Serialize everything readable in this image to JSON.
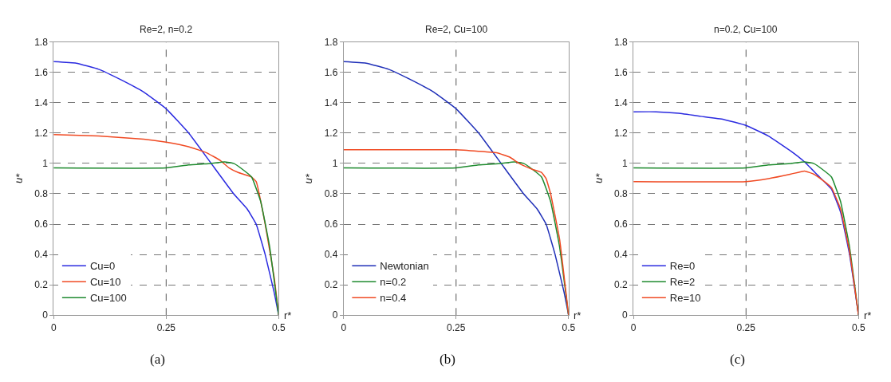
{
  "chart_data": [
    {
      "type": "line",
      "title": "Re=2, n=0.2",
      "xlabel": "r*",
      "ylabel": "u*",
      "xlim": [
        0,
        0.5
      ],
      "xticks": [
        0,
        0.25,
        0.5
      ],
      "ylim": [
        0,
        1.8
      ],
      "yticks": [
        0,
        0.2,
        0.4,
        0.6,
        0.8,
        1,
        1.2,
        1.4,
        1.6,
        1.8
      ],
      "grid": "y",
      "ref_lines": [
        {
          "axis": "x",
          "value": 0.25,
          "line_style": "dashed",
          "color": "#555555"
        }
      ],
      "legend": "bottom left",
      "marker": "none",
      "line_style": "solid",
      "annotations": [
        "(a)"
      ],
      "series": [
        {
          "name": "Cu=0",
          "color": "#2a2ae0",
          "x": [
            0,
            0.05,
            0.1,
            0.15,
            0.2,
            0.25,
            0.3,
            0.35,
            0.4,
            0.43,
            0.45,
            0.47,
            0.49,
            0.5
          ],
          "values": [
            1.67,
            1.66,
            1.62,
            1.55,
            1.47,
            1.36,
            1.2,
            1.0,
            0.8,
            0.7,
            0.6,
            0.4,
            0.15,
            0
          ]
        },
        {
          "name": "Cu=10",
          "color": "#f04a23",
          "x": [
            0,
            0.1,
            0.2,
            0.25,
            0.3,
            0.34,
            0.37,
            0.39,
            0.41,
            0.44,
            0.45,
            0.47,
            0.49,
            0.5
          ],
          "values": [
            1.19,
            1.18,
            1.16,
            1.14,
            1.11,
            1.07,
            1.02,
            0.97,
            0.94,
            0.91,
            0.88,
            0.6,
            0.25,
            0
          ]
        },
        {
          "name": "Cu=100",
          "color": "#1e8a2e",
          "x": [
            0,
            0.25,
            0.3,
            0.35,
            0.38,
            0.4,
            0.42,
            0.44,
            0.46,
            0.48,
            0.5
          ],
          "values": [
            0.97,
            0.97,
            0.99,
            1.0,
            1.01,
            1.0,
            0.96,
            0.91,
            0.75,
            0.45,
            0
          ]
        }
      ]
    },
    {
      "type": "line",
      "title": "Re=2, Cu=100",
      "xlabel": "r*",
      "ylabel": "u*",
      "xlim": [
        0,
        0.5
      ],
      "xticks": [
        0,
        0.25,
        0.5
      ],
      "ylim": [
        0,
        1.8
      ],
      "yticks": [
        0,
        0.2,
        0.4,
        0.6,
        0.8,
        1,
        1.2,
        1.4,
        1.6,
        1.8
      ],
      "grid": "y",
      "ref_lines": [
        {
          "axis": "x",
          "value": 0.25,
          "line_style": "dashed",
          "color": "#555555"
        }
      ],
      "legend": "bottom left",
      "marker": "none",
      "line_style": "solid",
      "annotations": [
        "(b)"
      ],
      "series": [
        {
          "name": "Newtonian",
          "color": "#1f2fb8",
          "x": [
            0,
            0.05,
            0.1,
            0.15,
            0.2,
            0.25,
            0.3,
            0.35,
            0.4,
            0.43,
            0.45,
            0.47,
            0.49,
            0.5
          ],
          "values": [
            1.67,
            1.66,
            1.62,
            1.55,
            1.47,
            1.36,
            1.2,
            1.0,
            0.8,
            0.7,
            0.6,
            0.4,
            0.15,
            0
          ]
        },
        {
          "name": "n=0.2",
          "color": "#1e8a2e",
          "x": [
            0,
            0.25,
            0.3,
            0.35,
            0.38,
            0.4,
            0.42,
            0.44,
            0.46,
            0.48,
            0.5
          ],
          "values": [
            0.97,
            0.97,
            0.99,
            1.0,
            1.01,
            1.0,
            0.96,
            0.91,
            0.75,
            0.45,
            0
          ]
        },
        {
          "name": "n=0.4",
          "color": "#f04a23",
          "x": [
            0,
            0.25,
            0.3,
            0.34,
            0.37,
            0.39,
            0.42,
            0.44,
            0.45,
            0.46,
            0.48,
            0.5
          ],
          "values": [
            1.09,
            1.09,
            1.08,
            1.07,
            1.04,
            1.0,
            0.96,
            0.94,
            0.9,
            0.8,
            0.5,
            0
          ]
        }
      ]
    },
    {
      "type": "line",
      "title": "n=0.2, Cu=100",
      "xlabel": "r*",
      "ylabel": "u*",
      "xlim": [
        0,
        0.5
      ],
      "xticks": [
        0,
        0.25,
        0.5
      ],
      "ylim": [
        0,
        1.8
      ],
      "yticks": [
        0,
        0.2,
        0.4,
        0.6,
        0.8,
        1,
        1.2,
        1.4,
        1.6,
        1.8
      ],
      "grid": "y",
      "ref_lines": [
        {
          "axis": "x",
          "value": 0.25,
          "line_style": "dashed",
          "color": "#555555"
        }
      ],
      "legend": "bottom left",
      "marker": "none",
      "line_style": "solid",
      "annotations": [
        "(c)"
      ],
      "series": [
        {
          "name": "Re=0",
          "color": "#2a2ae0",
          "x": [
            0,
            0.05,
            0.1,
            0.15,
            0.2,
            0.25,
            0.3,
            0.35,
            0.38,
            0.41,
            0.44,
            0.46,
            0.48,
            0.5
          ],
          "values": [
            1.34,
            1.34,
            1.33,
            1.31,
            1.29,
            1.25,
            1.18,
            1.08,
            1.01,
            0.92,
            0.83,
            0.68,
            0.4,
            0
          ]
        },
        {
          "name": "Re=2",
          "color": "#1e8a2e",
          "x": [
            0,
            0.25,
            0.3,
            0.35,
            0.38,
            0.4,
            0.42,
            0.44,
            0.46,
            0.48,
            0.5
          ],
          "values": [
            0.97,
            0.97,
            0.99,
            1.0,
            1.01,
            1.0,
            0.96,
            0.91,
            0.75,
            0.45,
            0
          ]
        },
        {
          "name": "Re=10",
          "color": "#f04a23",
          "x": [
            0,
            0.25,
            0.3,
            0.35,
            0.38,
            0.4,
            0.42,
            0.44,
            0.46,
            0.48,
            0.5
          ],
          "values": [
            0.88,
            0.88,
            0.9,
            0.93,
            0.95,
            0.93,
            0.89,
            0.84,
            0.7,
            0.42,
            0
          ]
        }
      ]
    }
  ]
}
